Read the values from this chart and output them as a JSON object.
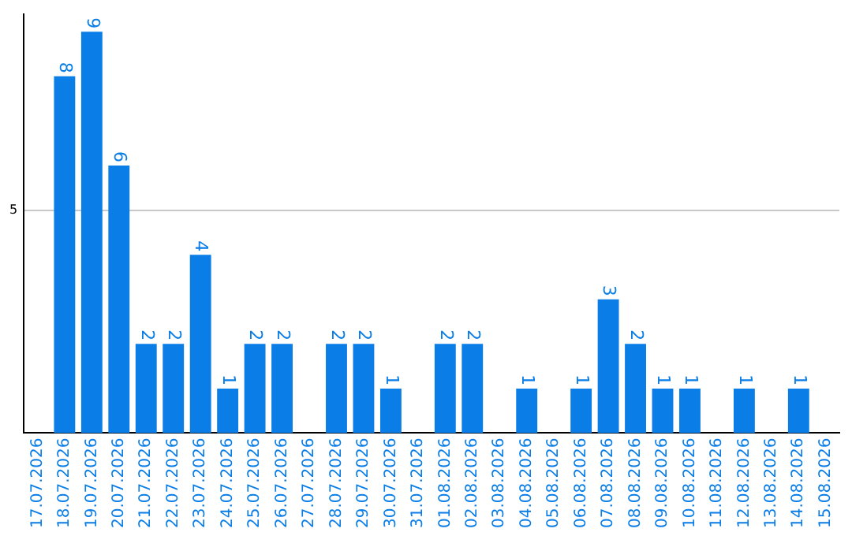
{
  "chart_data": {
    "type": "bar",
    "categories": [
      "17.07.2026",
      "18.07.2026",
      "19.07.2026",
      "20.07.2026",
      "21.07.2026",
      "22.07.2026",
      "23.07.2026",
      "24.07.2026",
      "25.07.2026",
      "26.07.2026",
      "27.07.2026",
      "28.07.2026",
      "29.07.2026",
      "30.07.2026",
      "31.07.2026",
      "01.08.2026",
      "02.08.2026",
      "03.08.2026",
      "04.08.2026",
      "05.08.2026",
      "06.08.2026",
      "07.08.2026",
      "08.08.2026",
      "09.08.2026",
      "10.08.2026",
      "11.08.2026",
      "12.08.2026",
      "13.08.2026",
      "14.08.2026",
      "15.08.2026"
    ],
    "values": [
      0,
      8,
      9,
      6,
      2,
      2,
      4,
      1,
      2,
      2,
      0,
      2,
      2,
      1,
      0,
      2,
      2,
      0,
      1,
      0,
      1,
      3,
      2,
      1,
      1,
      0,
      1,
      0,
      1,
      0
    ],
    "value_labels": [
      null,
      "8",
      "9",
      "6",
      "2",
      "2",
      "4",
      "1",
      "2",
      "2",
      null,
      "2",
      "2",
      "1",
      null,
      "2",
      "2",
      null,
      "1",
      null,
      "1",
      "3",
      "2",
      "1",
      "1",
      null,
      "1",
      null,
      "1",
      null
    ],
    "color": "#0a7ee6",
    "ylim": [
      0,
      9.4
    ],
    "yticks": [
      5
    ],
    "grid": "y"
  }
}
